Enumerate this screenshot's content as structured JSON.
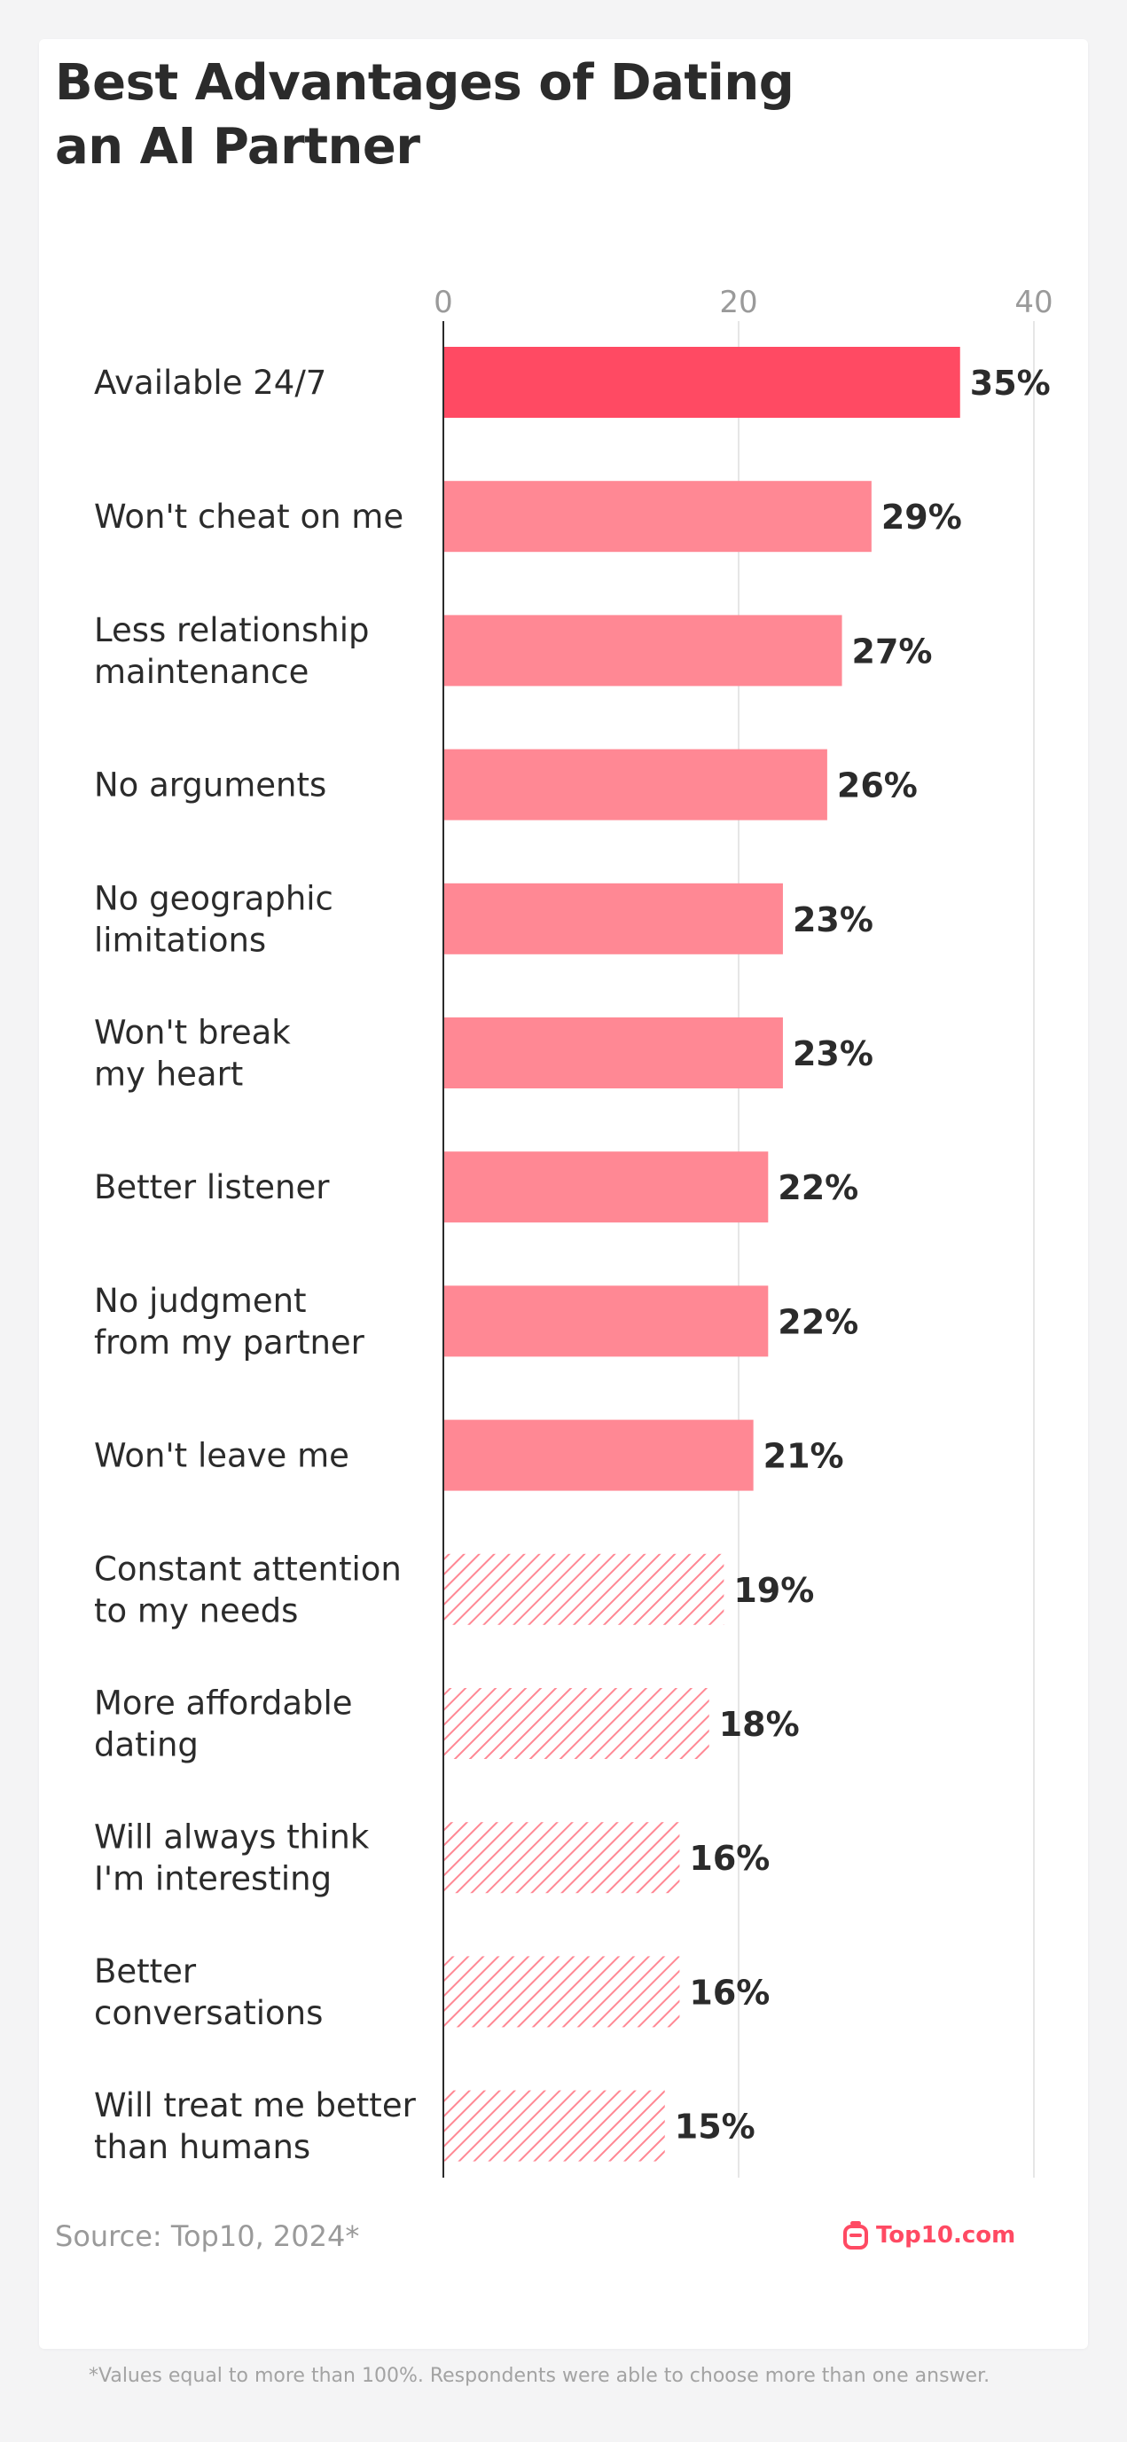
{
  "colors": {
    "highlight": "#ff4a63",
    "bar": "#ff8894",
    "hatch": "#ff8894",
    "axis": "#2b2b2b",
    "grid": "#e6e6e6",
    "tick": "#9a9a9a",
    "text": "#2b2b2b"
  },
  "chart_data": {
    "type": "bar",
    "orientation": "horizontal",
    "title": "Best Advantages of Dating an AI Partner",
    "title_lines": [
      "Best Advantages of Dating",
      "an AI Partner"
    ],
    "xlim": [
      0,
      40
    ],
    "ticks": [
      0,
      20,
      40
    ],
    "tick_labels": [
      "0",
      "20",
      "40"
    ],
    "grid": true,
    "value_suffix": "%",
    "categories": [
      [
        "Available 24/7"
      ],
      [
        "Won't cheat on me"
      ],
      [
        "Less relationship",
        "maintenance"
      ],
      [
        "No arguments"
      ],
      [
        "No geographic",
        "limitations"
      ],
      [
        "Won't break",
        "my heart"
      ],
      [
        "Better listener"
      ],
      [
        "No judgment",
        "from my partner"
      ],
      [
        "Won't leave me"
      ],
      [
        "Constant attention",
        "to my needs"
      ],
      [
        "More affordable",
        "dating"
      ],
      [
        "Will always think",
        "I'm interesting"
      ],
      [
        "Better",
        "conversations"
      ],
      [
        "Will treat me better",
        "than humans"
      ]
    ],
    "values": [
      35,
      29,
      27,
      26,
      23,
      23,
      22,
      22,
      21,
      19,
      18,
      16,
      16,
      15
    ],
    "value_labels": [
      "35%",
      "29%",
      "27%",
      "26%",
      "23%",
      "23%",
      "22%",
      "22%",
      "21%",
      "19%",
      "18%",
      "16%",
      "16%",
      "15%"
    ],
    "styles": [
      "highlight",
      "solid",
      "solid",
      "solid",
      "solid",
      "solid",
      "solid",
      "solid",
      "solid",
      "hatched",
      "hatched",
      "hatched",
      "hatched",
      "hatched"
    ]
  },
  "footer": {
    "source": "Source: Top10, 2024*",
    "brand": "Top10.com",
    "footnote": "*Values equal to more than 100%. Respondents were able to choose more than one answer."
  }
}
